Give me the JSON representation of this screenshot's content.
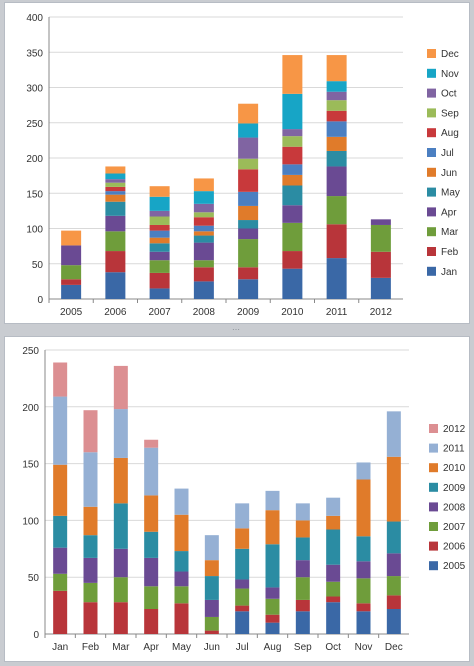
{
  "chart_data": [
    {
      "type": "bar",
      "stacked": true,
      "title": "",
      "xlabel": "",
      "ylabel": "",
      "ylim": [
        0,
        400
      ],
      "yticks": [
        0,
        50,
        100,
        150,
        200,
        250,
        300,
        350,
        400
      ],
      "grid": "horizontal",
      "legend_position": "right",
      "categories": [
        "2005",
        "2006",
        "2007",
        "2008",
        "2009",
        "2010",
        "2011",
        "2012"
      ],
      "series": [
        {
          "name": "Jan",
          "color": "#3a68a6",
          "values": [
            20,
            38,
            15,
            25,
            28,
            43,
            58,
            30
          ]
        },
        {
          "name": "Feb",
          "color": "#b8353a",
          "values": [
            8,
            30,
            22,
            20,
            17,
            25,
            48,
            37
          ]
        },
        {
          "name": "Mar",
          "color": "#6f9d3b",
          "values": [
            20,
            28,
            18,
            10,
            40,
            40,
            40,
            38
          ]
        },
        {
          "name": "Apr",
          "color": "#6a4a93",
          "values": [
            28,
            22,
            12,
            25,
            15,
            25,
            42,
            8
          ]
        },
        {
          "name": "May",
          "color": "#2b8ca3",
          "values": [
            0,
            20,
            12,
            10,
            12,
            28,
            22,
            0
          ]
        },
        {
          "name": "Jun",
          "color": "#e07b2a",
          "values": [
            0,
            10,
            8,
            6,
            20,
            15,
            20,
            0
          ]
        },
        {
          "name": "Jul",
          "color": "#4b7fc1",
          "values": [
            0,
            5,
            10,
            8,
            20,
            15,
            22,
            0
          ]
        },
        {
          "name": "Aug",
          "color": "#c8393b",
          "values": [
            0,
            6,
            8,
            12,
            32,
            25,
            15,
            0
          ]
        },
        {
          "name": "Sep",
          "color": "#9bbb59",
          "values": [
            0,
            6,
            12,
            7,
            15,
            15,
            15,
            0
          ]
        },
        {
          "name": "Oct",
          "color": "#8064a2",
          "values": [
            0,
            5,
            8,
            12,
            30,
            10,
            12,
            0
          ]
        },
        {
          "name": "Nov",
          "color": "#17a5c6",
          "values": [
            0,
            8,
            20,
            18,
            20,
            50,
            15,
            0
          ]
        },
        {
          "name": "Dec",
          "color": "#f79646",
          "values": [
            21,
            10,
            15,
            18,
            28,
            55,
            37,
            0
          ]
        }
      ]
    },
    {
      "type": "bar",
      "stacked": true,
      "title": "",
      "xlabel": "",
      "ylabel": "",
      "ylim": [
        0,
        250
      ],
      "yticks": [
        0,
        50,
        100,
        150,
        200,
        250
      ],
      "grid": "horizontal",
      "legend_position": "right",
      "categories": [
        "Jan",
        "Feb",
        "Mar",
        "Apr",
        "May",
        "Jun",
        "Jul",
        "Aug",
        "Sep",
        "Oct",
        "Nov",
        "Dec"
      ],
      "series": [
        {
          "name": "2005",
          "color": "#3a68a6",
          "values": [
            0,
            0,
            0,
            0,
            0,
            0,
            20,
            10,
            20,
            28,
            20,
            22
          ]
        },
        {
          "name": "2006",
          "color": "#b8353a",
          "values": [
            38,
            28,
            28,
            22,
            27,
            3,
            5,
            7,
            10,
            5,
            7,
            12
          ]
        },
        {
          "name": "2007",
          "color": "#6f9d3b",
          "values": [
            15,
            17,
            22,
            20,
            15,
            12,
            15,
            14,
            20,
            13,
            22,
            17
          ]
        },
        {
          "name": "2008",
          "color": "#6a4a93",
          "values": [
            23,
            22,
            25,
            25,
            13,
            15,
            8,
            10,
            15,
            15,
            15,
            20
          ]
        },
        {
          "name": "2009",
          "color": "#2b8ca3",
          "values": [
            28,
            20,
            40,
            23,
            18,
            21,
            27,
            38,
            20,
            31,
            22,
            28
          ]
        },
        {
          "name": "2010",
          "color": "#e07b2a",
          "values": [
            45,
            25,
            40,
            32,
            32,
            14,
            18,
            30,
            15,
            12,
            50,
            57
          ]
        },
        {
          "name": "2011",
          "color": "#95b0d4",
          "values": [
            60,
            48,
            43,
            42,
            23,
            22,
            22,
            17,
            15,
            16,
            15,
            40
          ]
        },
        {
          "name": "2012",
          "color": "#dc8f92",
          "values": [
            30,
            37,
            38,
            7,
            0,
            0,
            0,
            0,
            0,
            0,
            0,
            0
          ]
        }
      ]
    }
  ]
}
